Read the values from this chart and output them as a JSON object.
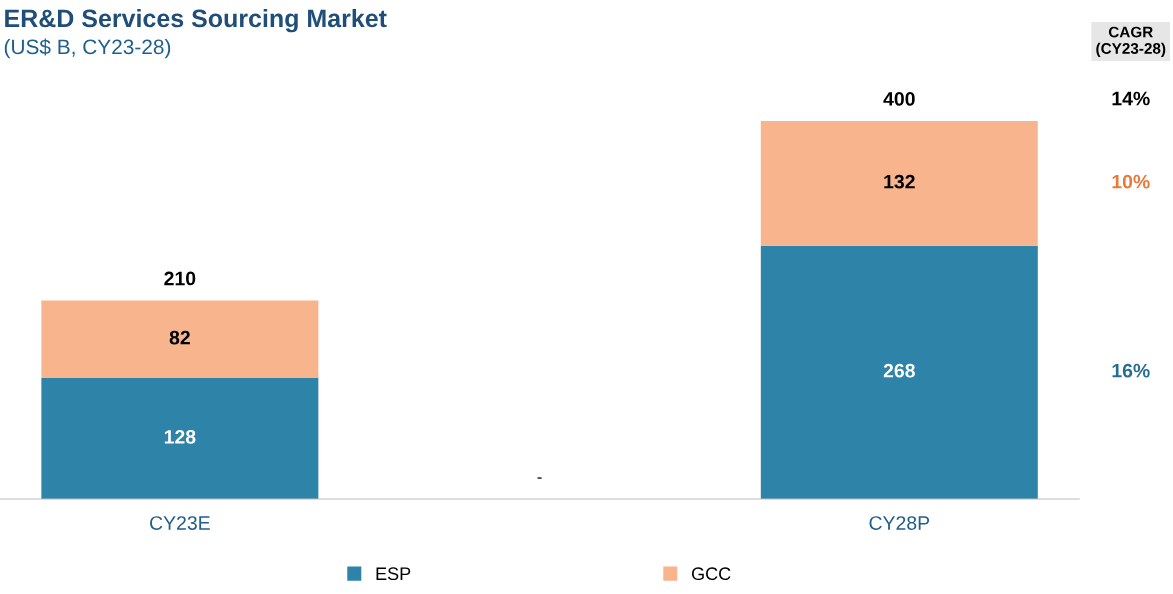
{
  "chart_data": {
    "type": "bar",
    "title": "ER&D Services Sourcing Market",
    "subtitle": "(US$ B, CY23-28)",
    "categories": [
      "CY23E",
      null,
      "CY28P"
    ],
    "stacked": true,
    "data_labels": true,
    "totals": [
      "210",
      null,
      "400"
    ],
    "series": [
      {
        "name": "ESP",
        "color": "#2e83a9",
        "values": [
          128,
          null,
          268
        ]
      },
      {
        "name": "GCC",
        "color": "#f8b48c",
        "values": [
          82,
          null,
          132
        ]
      }
    ],
    "annotations": [
      "-",
      "CAGR\n(CY23-28)",
      "14%",
      "10%",
      "16%"
    ],
    "tick_labels": "x",
    "grid": false,
    "legend": "bottom"
  }
}
